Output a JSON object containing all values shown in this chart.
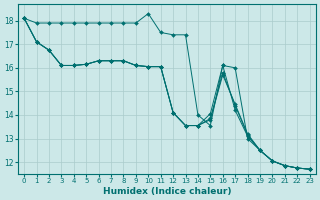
{
  "xlabel": "Humidex (Indice chaleur)",
  "bg_color": "#cce8e8",
  "line_color": "#007070",
  "grid_color": "#aacccc",
  "xlim": [
    -0.5,
    23.5
  ],
  "ylim": [
    11.5,
    18.7
  ],
  "yticks": [
    12,
    13,
    14,
    15,
    16,
    17,
    18
  ],
  "xticks": [
    0,
    1,
    2,
    3,
    4,
    5,
    6,
    7,
    8,
    9,
    10,
    11,
    12,
    13,
    14,
    15,
    16,
    17,
    18,
    19,
    20,
    21,
    22,
    23
  ],
  "series": [
    [
      18.1,
      17.9,
      17.9,
      17.9,
      17.9,
      17.9,
      17.9,
      17.9,
      17.9,
      17.9,
      18.3,
      17.5,
      17.4,
      17.4,
      14.0,
      13.55,
      16.1,
      16.0,
      13.0,
      12.5,
      12.05,
      11.85,
      11.75,
      11.7
    ],
    [
      18.1,
      17.1,
      16.75,
      16.1,
      16.1,
      16.15,
      16.3,
      16.3,
      16.3,
      16.1,
      16.05,
      16.05,
      14.1,
      13.55,
      13.55,
      14.05,
      16.1,
      14.2,
      13.1,
      12.5,
      12.05,
      11.85,
      11.75,
      11.7
    ],
    [
      18.1,
      17.1,
      16.75,
      16.1,
      16.1,
      16.15,
      16.3,
      16.3,
      16.3,
      16.1,
      16.05,
      16.05,
      14.1,
      13.55,
      13.55,
      13.85,
      15.8,
      14.4,
      13.15,
      12.5,
      12.05,
      11.85,
      11.75,
      11.7
    ],
    [
      18.1,
      17.1,
      16.75,
      16.1,
      16.1,
      16.15,
      16.3,
      16.3,
      16.3,
      16.1,
      16.05,
      16.05,
      14.1,
      13.55,
      13.55,
      13.8,
      15.7,
      14.45,
      13.2,
      12.5,
      12.05,
      11.85,
      11.75,
      11.7
    ]
  ]
}
